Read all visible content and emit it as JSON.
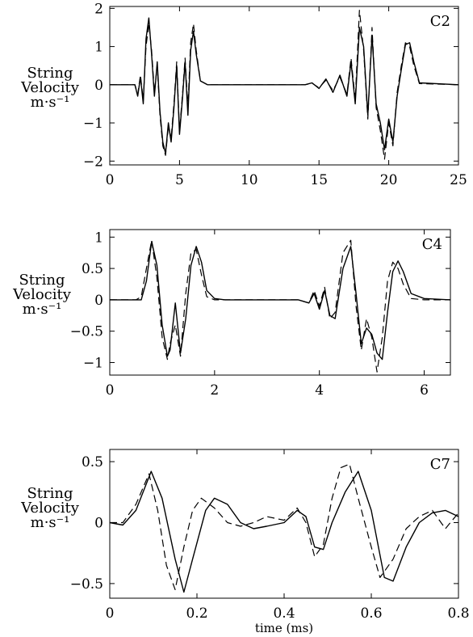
{
  "chart_data": [
    {
      "type": "line",
      "title": "C2",
      "ylabel_lines": [
        "String",
        "Velocity",
        "m·s⁻¹"
      ],
      "xlabel": "",
      "xlim": [
        0,
        25
      ],
      "ylim": [
        -2.1,
        2.05
      ],
      "xticks": [
        0,
        5,
        10,
        15,
        20,
        25
      ],
      "xtick_labels": [
        "0",
        "5",
        "10",
        "15",
        "20",
        "25"
      ],
      "yticks": [
        2,
        1,
        0,
        -1,
        -2
      ],
      "ytick_labels": [
        "2",
        "1",
        "0",
        "−1",
        "−2"
      ],
      "series": [
        {
          "style": "solid",
          "x": [
            0,
            1.8,
            2.0,
            2.2,
            2.4,
            2.6,
            2.8,
            3.0,
            3.2,
            3.4,
            3.6,
            3.8,
            4.0,
            4.2,
            4.4,
            4.6,
            4.8,
            5.0,
            5.2,
            5.4,
            5.6,
            5.8,
            6.0,
            6.2,
            6.5,
            7.0,
            14.0,
            14.5,
            15.0,
            15.5,
            16.0,
            16.5,
            17.0,
            17.3,
            17.6,
            17.9,
            18.2,
            18.5,
            18.8,
            19.1,
            19.4,
            19.7,
            20.0,
            20.3,
            20.6,
            20.9,
            21.2,
            21.5,
            21.8,
            22.2,
            25
          ],
          "y": [
            0,
            0,
            -0.3,
            0.2,
            -0.5,
            1.2,
            1.75,
            0.8,
            -0.3,
            0.6,
            -0.7,
            -1.5,
            -1.8,
            -1.0,
            -1.5,
            -0.6,
            0.5,
            -1.3,
            -0.4,
            0.6,
            -0.8,
            0.9,
            1.4,
            0.8,
            0.1,
            0,
            0,
            0.05,
            -0.1,
            0.15,
            -0.2,
            0.25,
            -0.3,
            0.6,
            -0.5,
            1.5,
            1.0,
            -0.8,
            1.3,
            -0.5,
            -1.0,
            -1.7,
            -0.9,
            -1.5,
            -0.3,
            0.4,
            1.05,
            1.1,
            0.6,
            0.05,
            0
          ]
        },
        {
          "style": "dashed",
          "x": [
            0,
            1.8,
            2.0,
            2.2,
            2.4,
            2.6,
            2.8,
            3.0,
            3.2,
            3.4,
            3.6,
            3.8,
            4.0,
            4.2,
            4.4,
            4.6,
            4.8,
            5.0,
            5.2,
            5.4,
            5.6,
            5.8,
            6.0,
            6.2,
            6.5,
            7.0,
            14.0,
            14.5,
            15.0,
            15.5,
            16.0,
            16.5,
            17.0,
            17.3,
            17.6,
            17.9,
            18.2,
            18.5,
            18.8,
            19.1,
            19.4,
            19.7,
            20.0,
            20.3,
            20.6,
            20.9,
            21.2,
            21.5,
            21.8,
            22.2,
            25
          ],
          "y": [
            0,
            0,
            -0.25,
            0.25,
            -0.4,
            1.0,
            1.6,
            0.9,
            -0.2,
            0.5,
            -0.8,
            -1.6,
            -1.85,
            -1.1,
            -1.4,
            -0.5,
            0.6,
            -1.2,
            -0.3,
            0.7,
            -0.6,
            1.1,
            1.6,
            0.9,
            0.1,
            0,
            0,
            0.04,
            -0.08,
            0.12,
            -0.15,
            0.2,
            -0.25,
            0.7,
            -0.4,
            1.95,
            0.9,
            -0.9,
            1.5,
            -0.6,
            -1.2,
            -1.95,
            -1.0,
            -1.6,
            -0.2,
            0.5,
            1.1,
            1.0,
            0.5,
            0.03,
            0
          ]
        }
      ]
    },
    {
      "type": "line",
      "title": "C4",
      "ylabel_lines": [
        "String",
        "Velocity",
        "m·s⁻¹"
      ],
      "xlabel": "",
      "xlim": [
        0,
        6.5
      ],
      "ylim": [
        -1.2,
        1.12
      ],
      "xticks": [
        0,
        2,
        4,
        6
      ],
      "xtick_labels": [
        "0",
        "2",
        "4",
        "6"
      ],
      "yticks": [
        1,
        0.5,
        0,
        -0.5,
        -1
      ],
      "ytick_labels": [
        "1",
        "0.5",
        "0",
        "−0.5",
        "−1"
      ],
      "series": [
        {
          "style": "solid",
          "x": [
            0,
            0.5,
            0.6,
            0.7,
            0.8,
            0.9,
            1.0,
            1.1,
            1.15,
            1.25,
            1.35,
            1.45,
            1.55,
            1.65,
            1.75,
            1.85,
            2.0,
            2.2,
            3.6,
            3.8,
            3.9,
            4.0,
            4.1,
            4.2,
            4.3,
            4.45,
            4.6,
            4.7,
            4.8,
            4.9,
            5.0,
            5.1,
            5.2,
            5.3,
            5.4,
            5.5,
            5.6,
            5.75,
            6.0,
            6.5
          ],
          "y": [
            0,
            0,
            0.0,
            0.3,
            0.93,
            0.55,
            -0.4,
            -0.9,
            -0.8,
            -0.05,
            -0.85,
            -0.3,
            0.55,
            0.85,
            0.6,
            0.15,
            0.02,
            0,
            0,
            -0.05,
            0.1,
            -0.15,
            0.15,
            -0.25,
            -0.3,
            0.5,
            0.85,
            0.1,
            -0.7,
            -0.45,
            -0.55,
            -0.85,
            -0.95,
            -0.2,
            0.45,
            0.62,
            0.45,
            0.1,
            0.02,
            0
          ]
        },
        {
          "style": "dashed",
          "x": [
            0,
            0.5,
            0.6,
            0.7,
            0.8,
            0.9,
            1.0,
            1.1,
            1.15,
            1.25,
            1.35,
            1.45,
            1.55,
            1.65,
            1.75,
            1.85,
            2.0,
            2.2,
            3.6,
            3.8,
            3.9,
            4.0,
            4.1,
            4.2,
            4.3,
            4.45,
            4.6,
            4.7,
            4.8,
            4.9,
            5.0,
            5.1,
            5.2,
            5.3,
            5.4,
            5.5,
            5.6,
            5.75,
            6.0,
            6.5
          ],
          "y": [
            0,
            0,
            0.05,
            0.5,
            0.95,
            0.35,
            -0.6,
            -0.95,
            -0.7,
            -0.4,
            -0.9,
            0.1,
            0.75,
            0.8,
            0.4,
            0.05,
            0.0,
            0,
            0,
            -0.05,
            0.15,
            -0.1,
            0.2,
            -0.3,
            -0.2,
            0.75,
            0.95,
            -0.1,
            -0.8,
            -0.3,
            -0.6,
            -1.15,
            -0.6,
            0.3,
            0.6,
            0.5,
            0.25,
            0.02,
            0.0,
            0
          ]
        }
      ]
    },
    {
      "type": "line",
      "title": "C7",
      "ylabel_lines": [
        "String",
        "Velocity",
        "m·s⁻¹"
      ],
      "xlabel": "time (ms)",
      "xlim": [
        0,
        0.8
      ],
      "ylim": [
        -0.62,
        0.6
      ],
      "xticks": [
        0,
        0.2,
        0.4,
        0.6,
        0.8
      ],
      "xtick_labels": [
        "0",
        "0.2",
        "0.4",
        "0.6",
        "0.8"
      ],
      "yticks": [
        0.5,
        0,
        -0.5
      ],
      "ytick_labels": [
        "0.5",
        "0",
        "−0.5"
      ],
      "series": [
        {
          "style": "solid",
          "x": [
            0,
            0.03,
            0.06,
            0.095,
            0.12,
            0.15,
            0.17,
            0.19,
            0.22,
            0.24,
            0.27,
            0.3,
            0.33,
            0.36,
            0.4,
            0.43,
            0.45,
            0.47,
            0.49,
            0.51,
            0.54,
            0.57,
            0.6,
            0.63,
            0.65,
            0.68,
            0.71,
            0.74,
            0.77,
            0.8
          ],
          "y": [
            0,
            -0.02,
            0.1,
            0.42,
            0.2,
            -0.3,
            -0.57,
            -0.3,
            0.1,
            0.2,
            0.15,
            0.0,
            -0.05,
            -0.03,
            0.0,
            0.1,
            0.05,
            -0.2,
            -0.22,
            0.0,
            0.25,
            0.42,
            0.1,
            -0.45,
            -0.48,
            -0.2,
            0.0,
            0.08,
            0.1,
            0.05
          ]
        },
        {
          "style": "dashed",
          "x": [
            0,
            0.03,
            0.06,
            0.09,
            0.11,
            0.13,
            0.15,
            0.17,
            0.19,
            0.21,
            0.24,
            0.27,
            0.3,
            0.33,
            0.36,
            0.4,
            0.43,
            0.45,
            0.47,
            0.49,
            0.51,
            0.53,
            0.55,
            0.57,
            0.6,
            0.62,
            0.65,
            0.68,
            0.71,
            0.74,
            0.77,
            0.8
          ],
          "y": [
            0,
            0.0,
            0.15,
            0.4,
            0.1,
            -0.35,
            -0.55,
            -0.2,
            0.1,
            0.2,
            0.12,
            0.0,
            -0.03,
            0.0,
            0.05,
            0.02,
            0.12,
            0.0,
            -0.28,
            -0.18,
            0.2,
            0.45,
            0.48,
            0.2,
            -0.2,
            -0.45,
            -0.3,
            -0.05,
            0.05,
            0.1,
            -0.05,
            0.08
          ]
        }
      ]
    }
  ]
}
